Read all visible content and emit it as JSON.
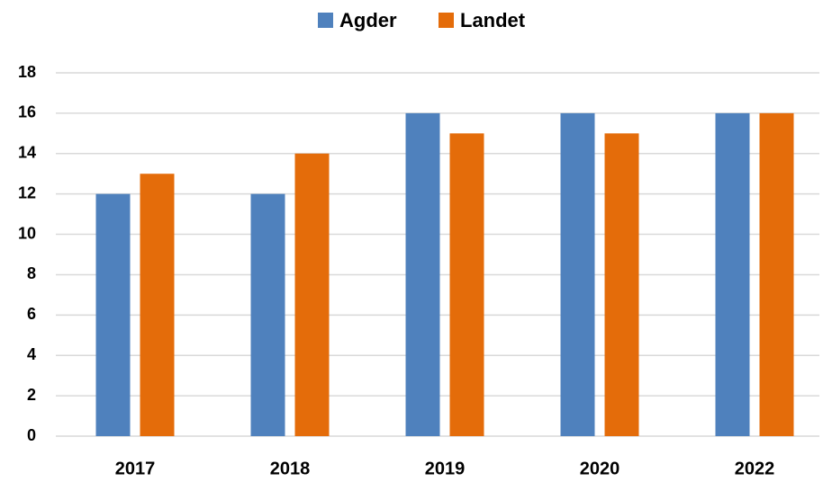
{
  "chart_data": {
    "type": "bar",
    "categories": [
      "2017",
      "2018",
      "2019",
      "2020",
      "2022"
    ],
    "series": [
      {
        "name": "Agder",
        "color": "#4f81bd",
        "values": [
          12,
          12,
          16,
          16,
          16
        ]
      },
      {
        "name": "Landet",
        "color": "#e46c0a",
        "values": [
          13,
          14,
          15,
          15,
          16
        ]
      }
    ],
    "ylim": [
      0,
      18
    ],
    "yticks": [
      0,
      2,
      4,
      6,
      8,
      10,
      12,
      14,
      16,
      18
    ],
    "grid": true,
    "legend": "top"
  }
}
